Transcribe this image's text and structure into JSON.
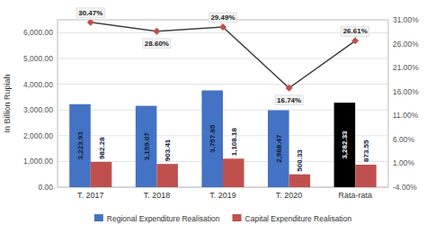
{
  "chart_data": {
    "type": "bar",
    "categories": [
      "T. 2017",
      "T. 2018",
      "T. 2019",
      "T. 2020",
      "Rata-rata"
    ],
    "ylabel": "In Billion Rupiah",
    "ylim": [
      0,
      6500
    ],
    "yticks": [
      {
        "value": 0,
        "label": "0.00"
      },
      {
        "value": 1000,
        "label": "1,000.00"
      },
      {
        "value": 2000,
        "label": "2,000.00"
      },
      {
        "value": 3000,
        "label": "3,000.00"
      },
      {
        "value": 4000,
        "label": "4,000.00"
      },
      {
        "value": 5000,
        "label": "5,000.00"
      },
      {
        "value": 6000,
        "label": "6,000.00"
      }
    ],
    "y2lim": [
      -4.0,
      31.0
    ],
    "y2ticks": [
      {
        "value": -4.0,
        "label": "-4.00%"
      },
      {
        "value": 1.0,
        "label": "1.00%"
      },
      {
        "value": 6.0,
        "label": "6.00%"
      },
      {
        "value": 11.0,
        "label": "11.00%"
      },
      {
        "value": 16.0,
        "label": "16.00%"
      },
      {
        "value": 21.0,
        "label": "21.00%"
      },
      {
        "value": 26.0,
        "label": "26.00%"
      },
      {
        "value": 31.0,
        "label": "31.00%"
      }
    ],
    "grid": true,
    "legend": "bottom",
    "data_labels": true,
    "series": [
      {
        "name": "Regional Expenditure Realisation",
        "color": "#4472C4",
        "colors": [
          "#4472C4",
          "#4472C4",
          "#4472C4",
          "#4472C4",
          "#000000"
        ],
        "values": [
          3223.93,
          3159.07,
          3757.85,
          2988.47,
          3282.33
        ],
        "value_labels": [
          "3,223.93",
          "3,159.07",
          "3,757.85",
          "2,988.47",
          "3,282.33"
        ]
      },
      {
        "name": "Capital Expenditure Realisation",
        "color": "#C0504D",
        "values": [
          982.28,
          903.41,
          1108.18,
          500.33,
          873.55
        ],
        "value_labels": [
          "982.28",
          "903.41",
          "1,108.18",
          "500.33",
          "873.55"
        ]
      },
      {
        "type": "line",
        "axis": "y2",
        "color": "#404040",
        "marker": "diamond",
        "colors": [
          "#C0504D",
          "#C0504D",
          "#C0504D",
          "#C0504D",
          "#C0504D"
        ],
        "values": [
          30.47,
          28.6,
          29.49,
          16.74,
          26.61
        ],
        "value_labels": [
          "30.47%",
          "28.60%",
          "29.49%",
          "16.74%",
          "26.61%"
        ]
      }
    ]
  }
}
